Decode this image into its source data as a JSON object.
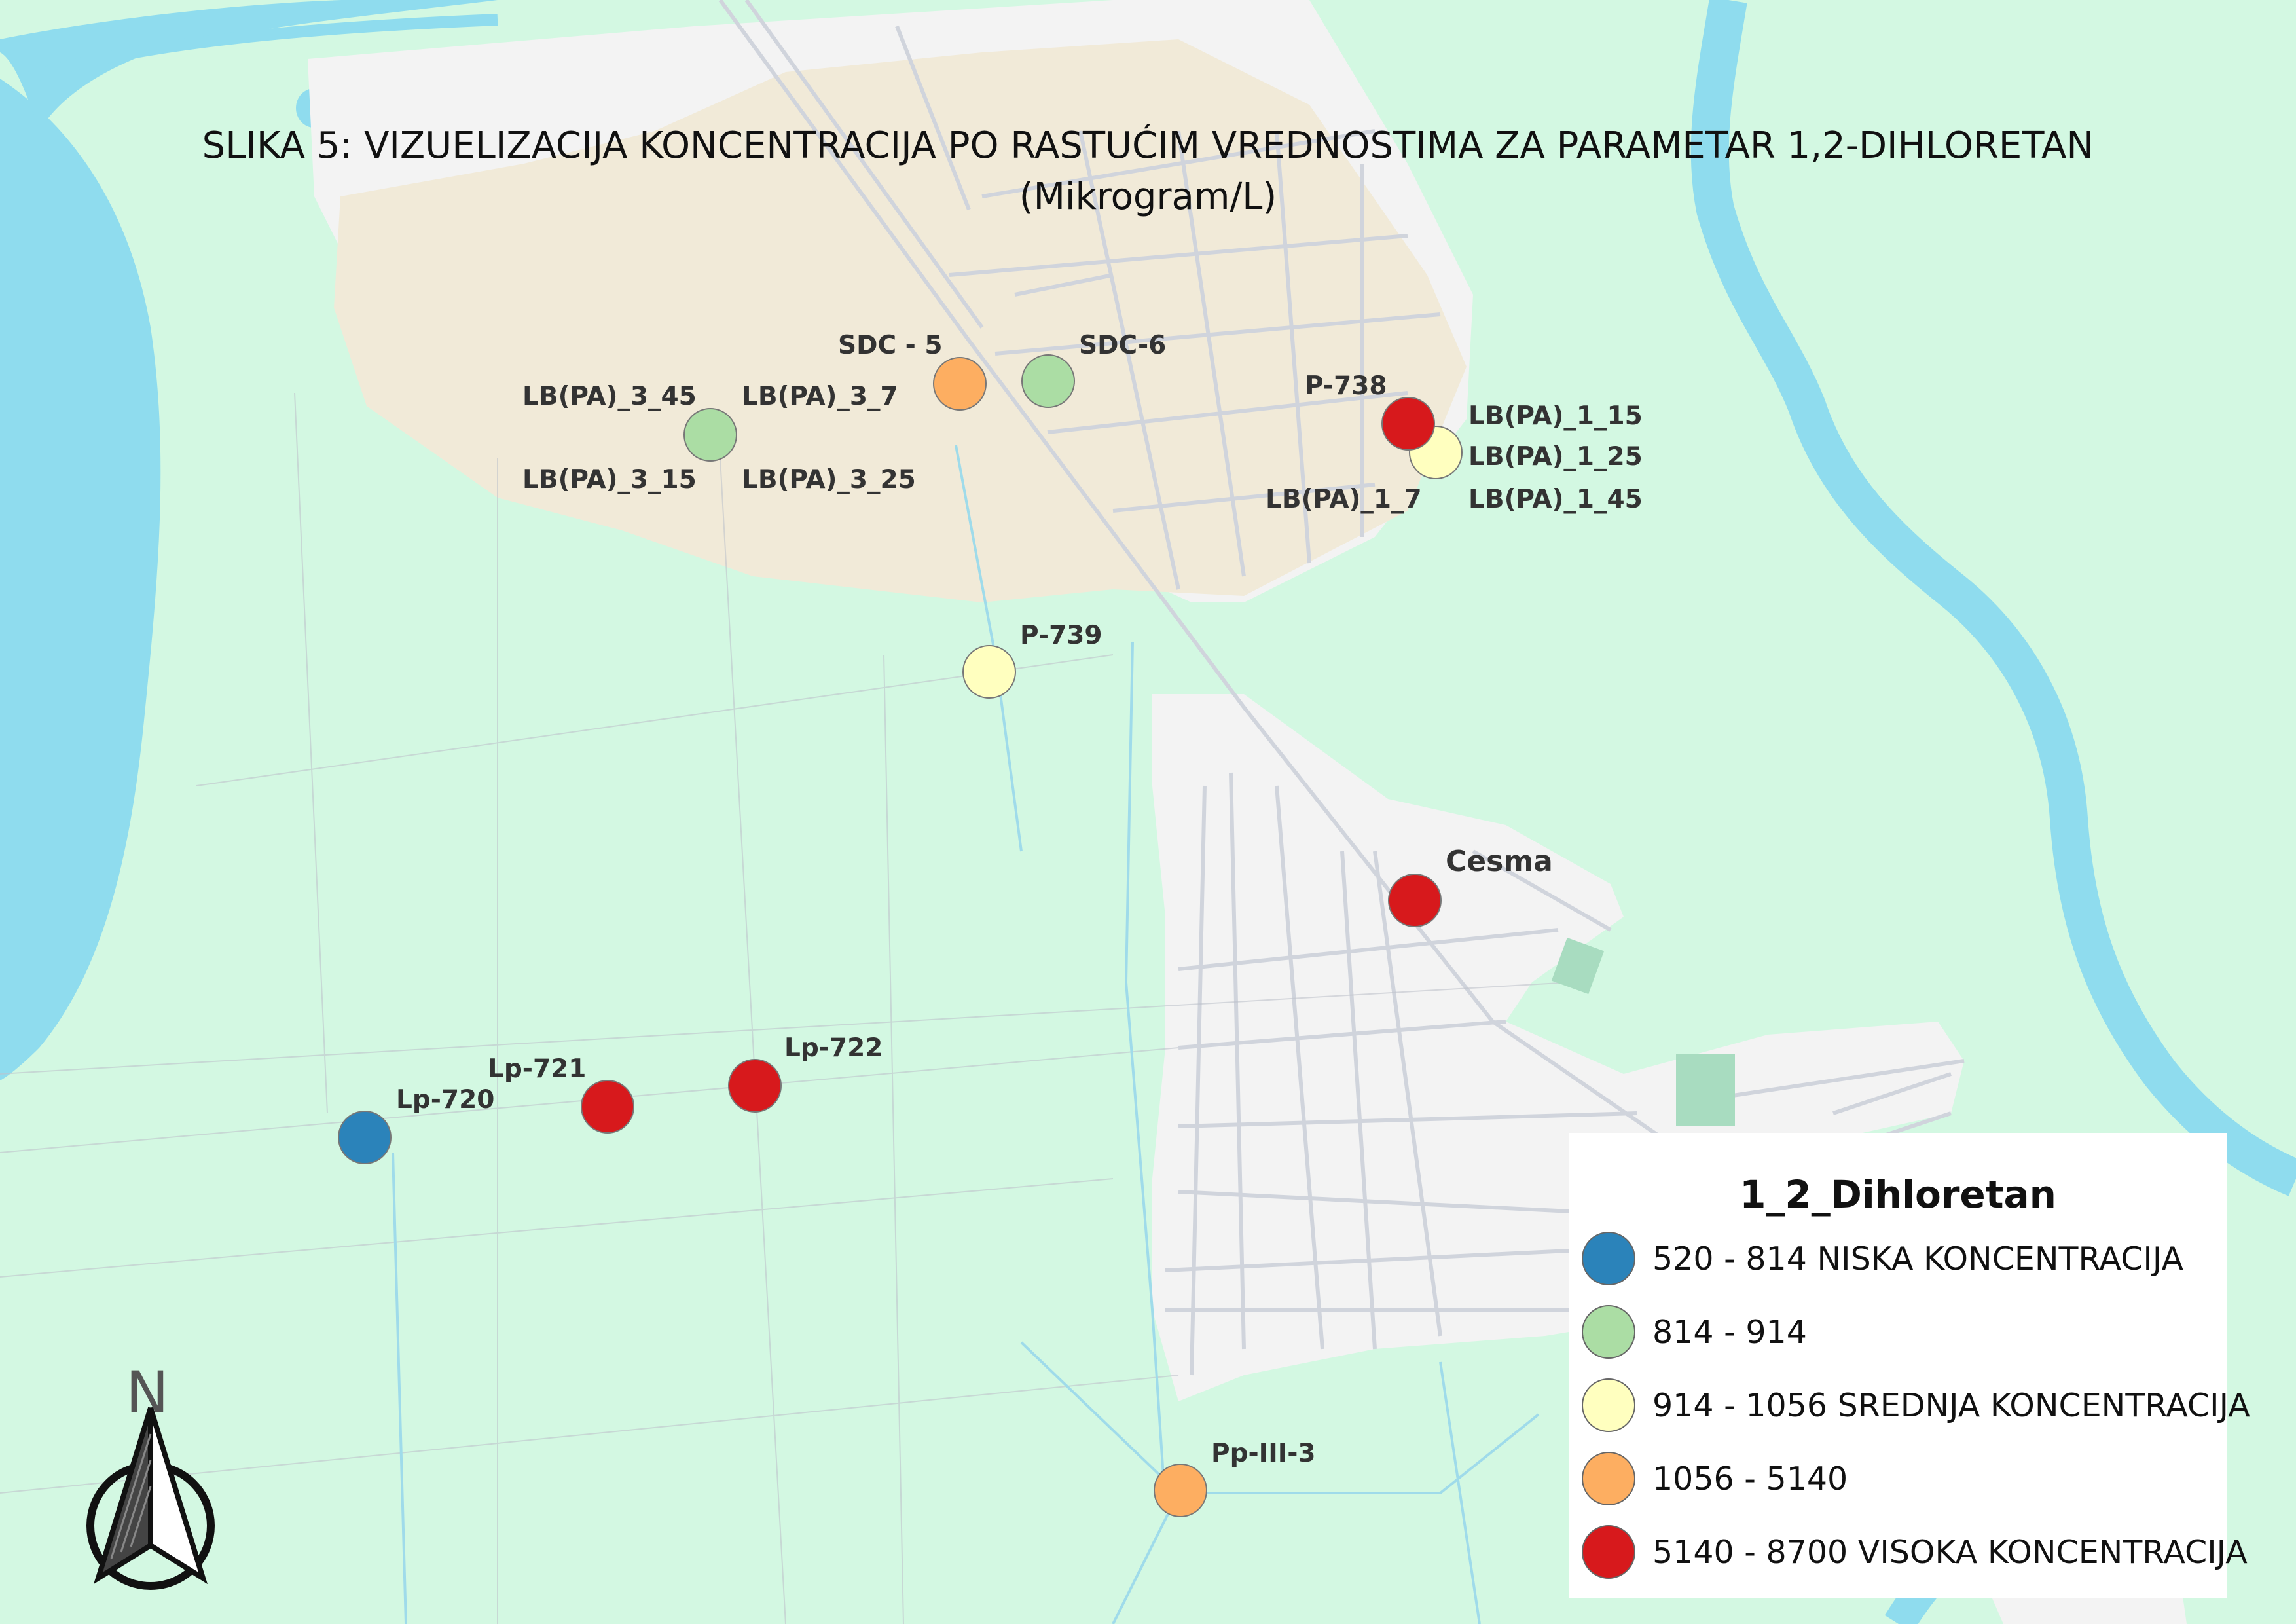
{
  "title": {
    "line1": "SLIKA 5: VIZUELIZACIJA KONCENTRACIJA PO RASTUĆIM VREDNOSTIMA ZA PARAMETAR 1,2-DIHLORETAN",
    "line2": "(Mikrogram/L)"
  },
  "colors": {
    "land": "#d3f8e2",
    "water": "#8fdcee",
    "urban": "#f3f3f3",
    "industrial": "#f2ebd9",
    "low": "#2b83ba",
    "low_mid": "#abdda4",
    "mid": "#ffffbf",
    "mid_high": "#fdae61",
    "high": "#d7191c"
  },
  "wells": [
    {
      "name": "SDC - 5",
      "class": "mid_high"
    },
    {
      "name": "SDC-6",
      "class": "low_mid"
    },
    {
      "name": "LB(PA)_3_45",
      "class": "low_mid"
    },
    {
      "name": "LB(PA)_3_7",
      "class": "low_mid"
    },
    {
      "name": "LB(PA)_3_15",
      "class": "low_mid"
    },
    {
      "name": "LB(PA)_3_25",
      "class": "low_mid"
    },
    {
      "name": "P-738",
      "class": "high"
    },
    {
      "name": "LB(PA)_1_15",
      "class": "mid"
    },
    {
      "name": "LB(PA)_1_25",
      "class": "mid"
    },
    {
      "name": "LB(PA)_1_7",
      "class": "mid"
    },
    {
      "name": "LB(PA)_1_45",
      "class": "mid"
    },
    {
      "name": "P-739",
      "class": "mid"
    },
    {
      "name": "Cesma",
      "class": "high"
    },
    {
      "name": "Lp-720",
      "class": "low"
    },
    {
      "name": "Lp-721",
      "class": "high"
    },
    {
      "name": "Lp-722",
      "class": "high"
    },
    {
      "name": "Pp-III-3",
      "class": "mid_high"
    }
  ],
  "legend": {
    "title": "1_2_Dihloretan",
    "items": [
      {
        "label": "520 - 814 NISKA KONCENTRACIJA",
        "color": "#2b83ba"
      },
      {
        "label": "814 - 914",
        "color": "#abdda4"
      },
      {
        "label": "914 - 1056 SREDNJA KONCENTRACIJA",
        "color": "#ffffbf"
      },
      {
        "label": "1056 - 5140",
        "color": "#fdae61"
      },
      {
        "label": "5140 - 8700 VISOKA KONCENTRACIJA",
        "color": "#d7191c"
      }
    ]
  },
  "compass": {
    "label": "N"
  }
}
